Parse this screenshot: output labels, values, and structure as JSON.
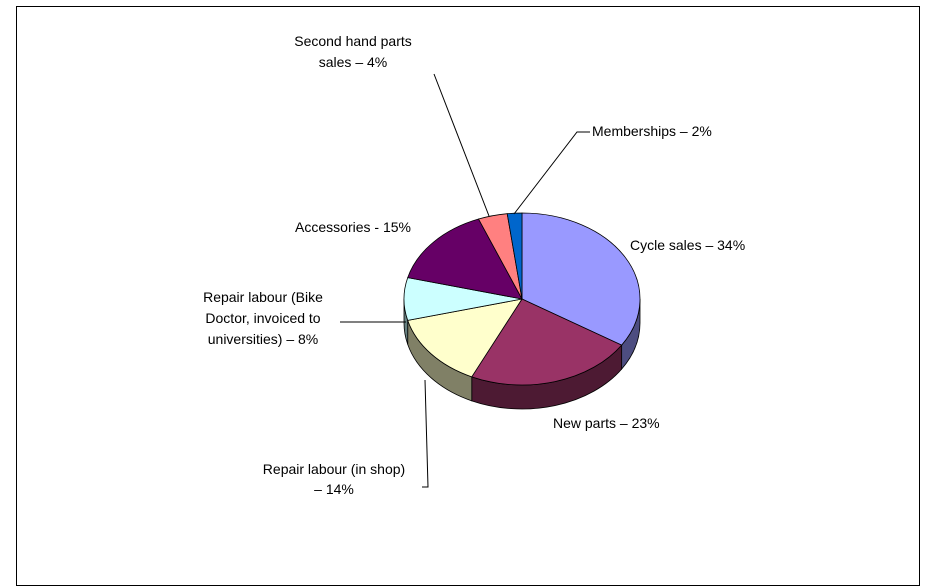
{
  "chart_data": {
    "type": "pie",
    "style": "3d-pie",
    "title": "",
    "slices": [
      {
        "label_lines": [
          "Cycle sales – 34%"
        ],
        "value": 34,
        "color": "#9999ff"
      },
      {
        "label_lines": [
          "New parts – 23%"
        ],
        "value": 23,
        "color": "#993366"
      },
      {
        "label_lines": [
          "Repair labour (in shop)",
          "– 14%"
        ],
        "value": 14,
        "color": "#ffffcc"
      },
      {
        "label_lines": [
          "Repair labour (Bike",
          "Doctor, invoiced to",
          "universities) – 8%"
        ],
        "value": 8,
        "color": "#ccffff"
      },
      {
        "label_lines": [
          "Accessories - 15%"
        ],
        "value": 15,
        "color": "#660066"
      },
      {
        "label_lines": [
          "Second hand parts",
          "sales – 4%"
        ],
        "value": 4,
        "color": "#ff8080"
      },
      {
        "label_lines": [
          "Memberships – 2%"
        ],
        "value": 2,
        "color": "#0066cc"
      }
    ]
  }
}
